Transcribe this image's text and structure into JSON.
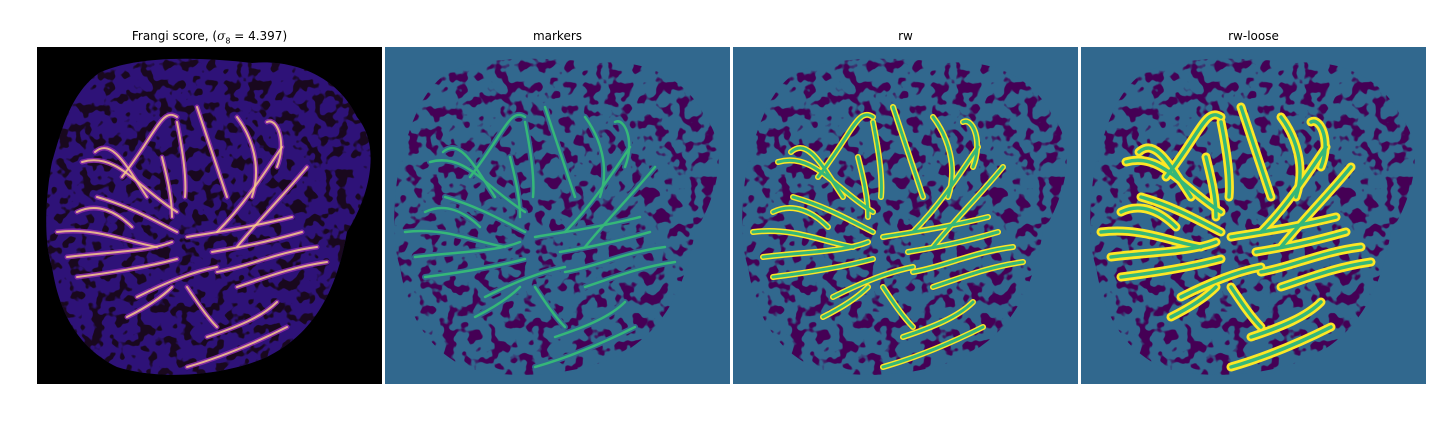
{
  "panels": [
    {
      "title_prefix": "Frangi score, (",
      "sigma_symbol": "σ",
      "sigma_subscript": "8",
      "title_suffix": " = 4.397)"
    },
    {
      "title": "markers"
    },
    {
      "title": "rw"
    },
    {
      "title": "rw-loose"
    }
  ],
  "colors": {
    "frangi_background": "#000000",
    "frangi_low": "#1a0d6e",
    "frangi_mid": "#8a2ba8",
    "frangi_high": "#f8c98b",
    "label_background": "#31688e",
    "label_dark": "#440154",
    "label_marker": "#35b779",
    "label_edge": "#fde725"
  }
}
